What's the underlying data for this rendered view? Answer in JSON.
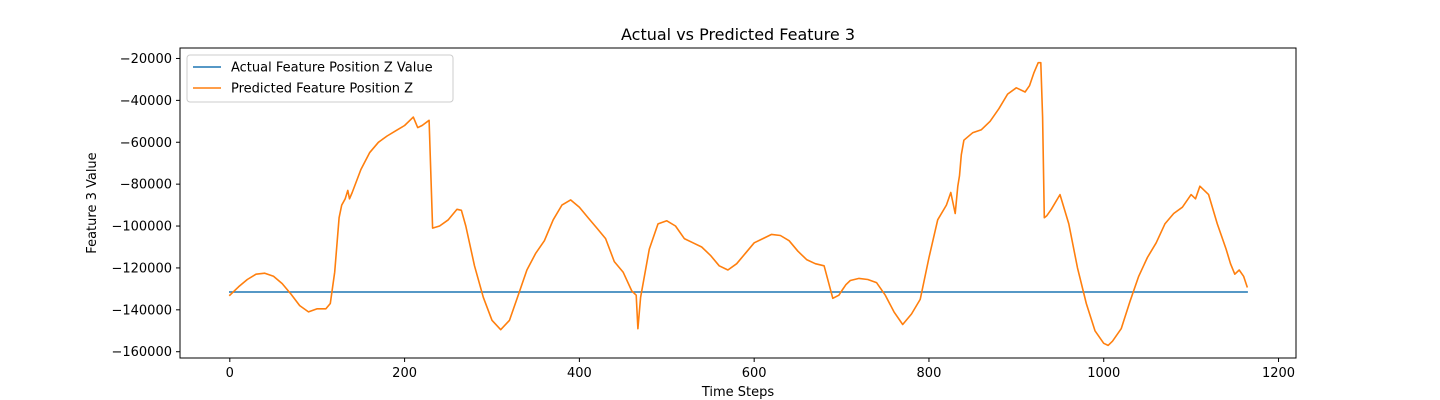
{
  "chart_data": {
    "type": "line",
    "title": "Actual vs Predicted Feature 3",
    "xlabel": "Time Steps",
    "ylabel": "Feature 3 Value",
    "xlim": [
      -57,
      1220
    ],
    "ylim": [
      -163000,
      -15000
    ],
    "xticks": [
      0,
      200,
      400,
      600,
      800,
      1000,
      1200
    ],
    "yticks": [
      -160000,
      -140000,
      -120000,
      -100000,
      -80000,
      -60000,
      -40000,
      -20000
    ],
    "xtick_labels": [
      "0",
      "200",
      "400",
      "600",
      "800",
      "1000",
      "1200"
    ],
    "ytick_labels": [
      "−160000",
      "−140000",
      "−120000",
      "−100000",
      "−80000",
      "−60000",
      "−40000",
      "−20000"
    ],
    "grid": false,
    "legend_position": "upper-left",
    "series": [
      {
        "name": "Actual Feature Position Z Value",
        "color": "#1f77b4",
        "x": [
          0,
          1164
        ],
        "y": [
          -131500,
          -131500
        ]
      },
      {
        "name": "Predicted Feature Position Z",
        "color": "#ff7f0e",
        "x": [
          0,
          10,
          20,
          30,
          40,
          50,
          60,
          70,
          80,
          90,
          100,
          110,
          115,
          120,
          125,
          128,
          132,
          135,
          137,
          140,
          150,
          160,
          170,
          180,
          190,
          200,
          210,
          215,
          220,
          228,
          232,
          240,
          250,
          260,
          265,
          270,
          280,
          290,
          300,
          310,
          320,
          330,
          340,
          350,
          360,
          370,
          380,
          390,
          400,
          410,
          420,
          430,
          440,
          450,
          460,
          465,
          467,
          470,
          480,
          490,
          500,
          510,
          520,
          530,
          540,
          550,
          560,
          570,
          580,
          590,
          600,
          610,
          620,
          630,
          640,
          650,
          660,
          670,
          680,
          690,
          697,
          700,
          705,
          710,
          720,
          730,
          740,
          750,
          760,
          770,
          780,
          790,
          800,
          810,
          820,
          825,
          830,
          833,
          835,
          837,
          840,
          850,
          860,
          870,
          880,
          890,
          900,
          910,
          915,
          920,
          925,
          928,
          930,
          932,
          935,
          940,
          950,
          960,
          970,
          980,
          990,
          1000,
          1005,
          1010,
          1020,
          1030,
          1040,
          1050,
          1060,
          1070,
          1080,
          1090,
          1100,
          1105,
          1110,
          1120,
          1130,
          1140,
          1145,
          1150,
          1155,
          1160,
          1164
        ],
        "y": [
          -133000,
          -129000,
          -125500,
          -123000,
          -122500,
          -124000,
          -127500,
          -132500,
          -138000,
          -141000,
          -139500,
          -139500,
          -137000,
          -122000,
          -96000,
          -90000,
          -87000,
          -83000,
          -87000,
          -84000,
          -73000,
          -65000,
          -60000,
          -57000,
          -54500,
          -52000,
          -48000,
          -53000,
          -52000,
          -49500,
          -101000,
          -100000,
          -97000,
          -92000,
          -92500,
          -100000,
          -119000,
          -134000,
          -145000,
          -149500,
          -145000,
          -133000,
          -121000,
          -113000,
          -107000,
          -97000,
          -90000,
          -87500,
          -91000,
          -96000,
          -101000,
          -106000,
          -117000,
          -122000,
          -131000,
          -133000,
          -149000,
          -134000,
          -111000,
          -99000,
          -97500,
          -100000,
          -106000,
          -108000,
          -110000,
          -114000,
          -119000,
          -121000,
          -118000,
          -113000,
          -108000,
          -106000,
          -104000,
          -104500,
          -107000,
          -112000,
          -116000,
          -118000,
          -119000,
          -134500,
          -133000,
          -131000,
          -128000,
          -126000,
          -125000,
          -125500,
          -127000,
          -133000,
          -141000,
          -147000,
          -142000,
          -135000,
          -115000,
          -97000,
          -90000,
          -84000,
          -94000,
          -81000,
          -76000,
          -66000,
          -59000,
          -55500,
          -54000,
          -50000,
          -44000,
          -37000,
          -34000,
          -36000,
          -33000,
          -27000,
          -22000,
          -22000,
          -48000,
          -96000,
          -95000,
          -92000,
          -85000,
          -99000,
          -120000,
          -137000,
          -150000,
          -156000,
          -157000,
          -155000,
          -149000,
          -136000,
          -124000,
          -115000,
          -108000,
          -99000,
          -94000,
          -91000,
          -85000,
          -87000,
          -81000,
          -85000,
          -99000,
          -111000,
          -118000,
          -123000,
          -121000,
          -124000,
          -129000
        ]
      }
    ]
  }
}
